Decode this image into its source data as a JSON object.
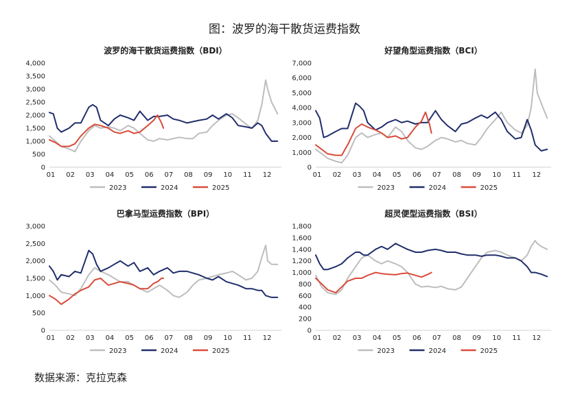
{
  "page": {
    "title": "图：波罗的海干散货运费指数",
    "source": "数据来源：克拉克森"
  },
  "colors": {
    "2023": "#bdbdbd",
    "2024": "#1f2d6b",
    "2025": "#d94a3a"
  },
  "chart_data": [
    {
      "type": "line",
      "title": "波罗的海干散货运费指数（BDI）",
      "xlabel": "",
      "ylabel": "",
      "x_ticks": [
        "01",
        "02",
        "03",
        "04",
        "05",
        "06",
        "07",
        "08",
        "09",
        "10",
        "11",
        "12"
      ],
      "y_ticks": [
        "0",
        "500",
        "1,000",
        "1,500",
        "2,000",
        "2,500",
        "3,000",
        "3,500",
        "4,000"
      ],
      "ylim": [
        0,
        4000
      ],
      "legend_position": "bottom",
      "series": [
        {
          "name": "2023",
          "color_key": "2023",
          "x": [
            1,
            1.3,
            1.6,
            2,
            2.3,
            2.6,
            3,
            3.3,
            3.6,
            4,
            4.3,
            4.6,
            5,
            5.3,
            5.6,
            6,
            6.3,
            6.6,
            7,
            7.3,
            7.6,
            8,
            8.3,
            8.6,
            9,
            9.3,
            9.6,
            10,
            10.3,
            10.6,
            11,
            11.3,
            11.6,
            11.8,
            12,
            12.1,
            12.3,
            12.6
          ],
          "values": [
            1200,
            1000,
            800,
            700,
            600,
            1000,
            1400,
            1600,
            1500,
            1550,
            1500,
            1400,
            1600,
            1500,
            1300,
            1050,
            1000,
            1100,
            1050,
            1100,
            1150,
            1100,
            1100,
            1300,
            1350,
            1600,
            1800,
            2000,
            2050,
            1900,
            1650,
            1500,
            1800,
            2400,
            3350,
            3000,
            2500,
            2050
          ]
        },
        {
          "name": "2024",
          "color_key": "2024",
          "x": [
            1,
            1.2,
            1.4,
            1.6,
            2,
            2.3,
            2.6,
            3,
            3.2,
            3.4,
            3.6,
            4,
            4.3,
            4.6,
            5,
            5.3,
            5.6,
            6,
            6.3,
            6.6,
            7,
            7.3,
            7.6,
            8,
            8.3,
            8.6,
            9,
            9.3,
            9.6,
            10,
            10.3,
            10.6,
            11,
            11.3,
            11.6,
            11.8,
            12,
            12.3,
            12.6
          ],
          "values": [
            2100,
            2050,
            1500,
            1350,
            1500,
            1700,
            1700,
            2300,
            2400,
            2300,
            1800,
            1600,
            1850,
            2000,
            1900,
            1800,
            2150,
            1800,
            1950,
            1950,
            2000,
            1850,
            1800,
            1700,
            1750,
            1800,
            1850,
            2000,
            1850,
            2050,
            1900,
            1600,
            1550,
            1500,
            1700,
            1600,
            1300,
            1000,
            1000
          ]
        },
        {
          "name": "2025",
          "color_key": "2025",
          "x": [
            1,
            1.3,
            1.6,
            2,
            2.3,
            2.6,
            3,
            3.3,
            3.6,
            4,
            4.3,
            4.6,
            5,
            5.3,
            5.6,
            6,
            6.3,
            6.5,
            6.7,
            6.8
          ],
          "values": [
            1050,
            950,
            800,
            800,
            900,
            1200,
            1500,
            1650,
            1600,
            1500,
            1350,
            1300,
            1400,
            1300,
            1350,
            1600,
            1800,
            2000,
            1700,
            1500
          ]
        }
      ]
    },
    {
      "type": "line",
      "title": "好望角型运费指数（BCI）",
      "xlabel": "",
      "ylabel": "",
      "x_ticks": [
        "01",
        "02",
        "03",
        "04",
        "05",
        "06",
        "07",
        "08",
        "09",
        "10",
        "11",
        "12"
      ],
      "y_ticks": [
        "0",
        "1,000",
        "2,000",
        "3,000",
        "4,000",
        "5,000",
        "6,000",
        "7,000"
      ],
      "ylim": [
        0,
        7000
      ],
      "legend_position": "bottom",
      "series": [
        {
          "name": "2023",
          "color_key": "2023",
          "x": [
            1,
            1.3,
            1.6,
            2,
            2.3,
            2.6,
            3,
            3.3,
            3.6,
            4,
            4.3,
            4.6,
            5,
            5.3,
            5.6,
            6,
            6.3,
            6.6,
            7,
            7.3,
            7.6,
            8,
            8.3,
            8.6,
            9,
            9.3,
            9.6,
            10,
            10.3,
            10.6,
            11,
            11.3,
            11.6,
            11.8,
            12,
            12.1,
            12.3,
            12.6
          ],
          "values": [
            1200,
            900,
            600,
            400,
            300,
            800,
            2000,
            2300,
            2000,
            2200,
            2300,
            2000,
            2700,
            2400,
            1800,
            1300,
            1200,
            1400,
            1800,
            2000,
            1900,
            1700,
            1800,
            1600,
            1500,
            2000,
            2600,
            3200,
            3700,
            3000,
            2500,
            2300,
            2800,
            4000,
            6600,
            5000,
            4300,
            3300
          ]
        },
        {
          "name": "2024",
          "color_key": "2024",
          "x": [
            1,
            1.2,
            1.4,
            1.6,
            2,
            2.3,
            2.6,
            3,
            3.2,
            3.4,
            3.6,
            4,
            4.3,
            4.6,
            5,
            5.3,
            5.6,
            6,
            6.3,
            6.6,
            7,
            7.3,
            7.6,
            8,
            8.3,
            8.6,
            9,
            9.3,
            9.6,
            10,
            10.3,
            10.6,
            11,
            11.3,
            11.6,
            11.8,
            12,
            12.3,
            12.6
          ],
          "values": [
            3800,
            3300,
            2000,
            2100,
            2400,
            2600,
            2600,
            4300,
            4100,
            3800,
            3000,
            2500,
            2700,
            3000,
            3200,
            3000,
            3100,
            2900,
            3000,
            3000,
            3800,
            3200,
            2800,
            2400,
            2900,
            3000,
            3300,
            3500,
            3300,
            3700,
            3200,
            2400,
            1900,
            2000,
            3200,
            2500,
            1500,
            1100,
            1200
          ]
        },
        {
          "name": "2025",
          "color_key": "2025",
          "x": [
            1,
            1.3,
            1.6,
            2,
            2.3,
            2.6,
            3,
            3.3,
            3.6,
            4,
            4.3,
            4.6,
            5,
            5.3,
            5.6,
            6,
            6.3,
            6.5,
            6.7,
            6.8
          ],
          "values": [
            1500,
            1200,
            900,
            800,
            800,
            1500,
            2600,
            2900,
            2700,
            2500,
            2300,
            2000,
            2100,
            1900,
            2000,
            2700,
            3100,
            3700,
            2900,
            2300
          ]
        }
      ]
    },
    {
      "type": "line",
      "title": "巴拿马型运费指数（BPI）",
      "xlabel": "",
      "ylabel": "",
      "x_ticks": [
        "01",
        "02",
        "03",
        "04",
        "05",
        "06",
        "07",
        "08",
        "09",
        "10",
        "11",
        "12"
      ],
      "y_ticks": [
        "0",
        "500",
        "1,000",
        "1,500",
        "2,000",
        "2,500",
        "3,000"
      ],
      "ylim": [
        0,
        3000
      ],
      "legend_position": "bottom",
      "series": [
        {
          "name": "2023",
          "color_key": "2023",
          "x": [
            1,
            1.3,
            1.6,
            2,
            2.3,
            2.6,
            3,
            3.3,
            3.6,
            4,
            4.3,
            4.6,
            5,
            5.3,
            5.6,
            6,
            6.3,
            6.6,
            7,
            7.3,
            7.6,
            8,
            8.3,
            8.6,
            9,
            9.3,
            9.6,
            10,
            10.3,
            10.6,
            11,
            11.3,
            11.6,
            11.8,
            12,
            12.1,
            12.3,
            12.6
          ],
          "values": [
            1450,
            1300,
            1100,
            1050,
            1000,
            1200,
            1600,
            1800,
            1700,
            1600,
            1500,
            1400,
            1400,
            1300,
            1200,
            1100,
            1200,
            1300,
            1150,
            1000,
            950,
            1100,
            1300,
            1450,
            1500,
            1550,
            1600,
            1650,
            1700,
            1600,
            1450,
            1500,
            1700,
            2100,
            2450,
            2000,
            1900,
            1900
          ]
        },
        {
          "name": "2024",
          "color_key": "2024",
          "x": [
            1,
            1.2,
            1.4,
            1.6,
            2,
            2.3,
            2.6,
            3,
            3.2,
            3.4,
            3.6,
            4,
            4.3,
            4.6,
            5,
            5.3,
            5.6,
            6,
            6.3,
            6.6,
            7,
            7.3,
            7.6,
            8,
            8.3,
            8.6,
            9,
            9.3,
            9.6,
            10,
            10.3,
            10.6,
            11,
            11.3,
            11.6,
            11.8,
            12,
            12.3,
            12.6
          ],
          "values": [
            1850,
            1700,
            1450,
            1600,
            1550,
            1700,
            1650,
            2300,
            2200,
            1900,
            1700,
            1800,
            1900,
            2000,
            1850,
            1950,
            1700,
            1800,
            1600,
            1700,
            1800,
            1650,
            1700,
            1700,
            1650,
            1600,
            1500,
            1450,
            1550,
            1400,
            1350,
            1300,
            1200,
            1200,
            1150,
            1150,
            1000,
            950,
            950
          ]
        },
        {
          "name": "2025",
          "color_key": "2025",
          "x": [
            1,
            1.3,
            1.6,
            2,
            2.3,
            2.6,
            3,
            3.3,
            3.6,
            4,
            4.3,
            4.6,
            5,
            5.3,
            5.6,
            6,
            6.3,
            6.5,
            6.7,
            6.8
          ],
          "values": [
            1000,
            900,
            750,
            900,
            1050,
            1150,
            1250,
            1450,
            1500,
            1300,
            1350,
            1400,
            1350,
            1300,
            1200,
            1200,
            1350,
            1400,
            1500,
            1500
          ]
        }
      ]
    },
    {
      "type": "line",
      "title": "超灵便型运费指数（BSI）",
      "xlabel": "",
      "ylabel": "",
      "x_ticks": [
        "01",
        "02",
        "03",
        "04",
        "05",
        "06",
        "07",
        "08",
        "09",
        "10",
        "11",
        "12"
      ],
      "y_ticks": [
        "0",
        "200",
        "400",
        "600",
        "800",
        "1,000",
        "1,200",
        "1,400",
        "1,600",
        "1,800"
      ],
      "ylim": [
        0,
        1800
      ],
      "legend_position": "bottom",
      "series": [
        {
          "name": "2023",
          "color_key": "2023",
          "x": [
            1,
            1.3,
            1.6,
            2,
            2.3,
            2.6,
            3,
            3.3,
            3.6,
            4,
            4.3,
            4.6,
            5,
            5.3,
            5.6,
            6,
            6.3,
            6.6,
            7,
            7.3,
            7.6,
            8,
            8.3,
            8.6,
            9,
            9.3,
            9.6,
            10,
            10.3,
            10.6,
            11,
            11.3,
            11.6,
            11.8,
            12,
            12.1,
            12.3,
            12.6
          ],
          "values": [
            950,
            750,
            650,
            620,
            700,
            900,
            1100,
            1250,
            1300,
            1200,
            1150,
            1200,
            1150,
            1100,
            1000,
            800,
            750,
            760,
            740,
            760,
            720,
            700,
            750,
            900,
            1100,
            1250,
            1350,
            1380,
            1350,
            1300,
            1250,
            1200,
            1300,
            1450,
            1550,
            1500,
            1450,
            1400
          ]
        },
        {
          "name": "2024",
          "color_key": "2024",
          "x": [
            1,
            1.2,
            1.4,
            1.6,
            2,
            2.3,
            2.6,
            3,
            3.2,
            3.4,
            3.6,
            4,
            4.3,
            4.6,
            5,
            5.3,
            5.6,
            6,
            6.3,
            6.6,
            7,
            7.3,
            7.6,
            8,
            8.3,
            8.6,
            9,
            9.3,
            9.6,
            10,
            10.3,
            10.6,
            11,
            11.3,
            11.6,
            11.8,
            12,
            12.3,
            12.6
          ],
          "values": [
            1300,
            1150,
            1050,
            1050,
            1100,
            1150,
            1250,
            1350,
            1350,
            1300,
            1300,
            1400,
            1450,
            1400,
            1500,
            1450,
            1400,
            1350,
            1350,
            1380,
            1400,
            1380,
            1350,
            1350,
            1320,
            1300,
            1300,
            1280,
            1300,
            1300,
            1280,
            1250,
            1250,
            1200,
            1100,
            1000,
            1000,
            970,
            930
          ]
        },
        {
          "name": "2025",
          "color_key": "2025",
          "x": [
            1,
            1.3,
            1.6,
            2,
            2.3,
            2.6,
            3,
            3.3,
            3.6,
            4,
            4.3,
            4.6,
            5,
            5.3,
            5.6,
            6,
            6.3,
            6.5,
            6.7,
            6.8
          ],
          "values": [
            900,
            800,
            700,
            650,
            750,
            850,
            900,
            900,
            950,
            1000,
            980,
            970,
            960,
            980,
            990,
            950,
            920,
            950,
            980,
            1000
          ]
        }
      ]
    }
  ]
}
